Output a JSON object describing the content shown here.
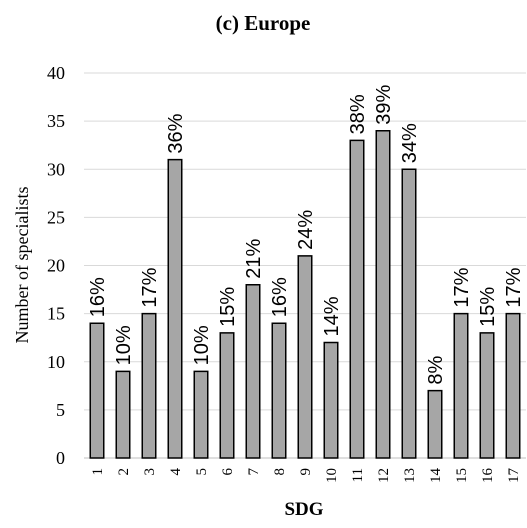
{
  "chart_data": {
    "type": "bar",
    "title": "(c) Europe",
    "xlabel": "SDG",
    "ylabel": "Number of specialists",
    "ylim": [
      0,
      40
    ],
    "yticks": [
      0,
      5,
      10,
      15,
      20,
      25,
      30,
      35,
      40
    ],
    "grid": true,
    "categories": [
      "1",
      "2",
      "3",
      "4",
      "5",
      "6",
      "7",
      "8",
      "9",
      "10",
      "11",
      "12",
      "13",
      "14",
      "15",
      "16",
      "17"
    ],
    "values": [
      14,
      9,
      15,
      31,
      9,
      13,
      18,
      14,
      21,
      12,
      33,
      34,
      30,
      7,
      15,
      13,
      15
    ],
    "data_labels": [
      "16%",
      "10%",
      "17%",
      "36%",
      "10%",
      "15%",
      "21%",
      "16%",
      "24%",
      "14%",
      "38%",
      "39%",
      "34%",
      "8%",
      "17%",
      "15%",
      "17%"
    ],
    "colors": {
      "bar_fill": "#a6a6a6",
      "bar_stroke": "#000000",
      "grid": "#d9d9d9"
    }
  }
}
